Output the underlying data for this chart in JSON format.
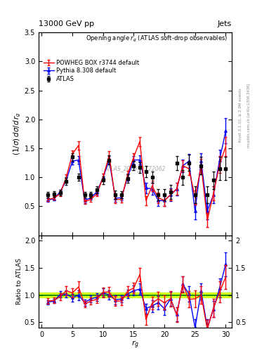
{
  "title_top": "13000 GeV pp",
  "title_right": "Jets",
  "plot_title": "Opening angle r$_g$ (ATLAS soft-drop observables)",
  "ylabel_main": "(1/σ) dσ/d r_g",
  "ylabel_ratio": "Ratio to ATLAS",
  "xlabel": "r_g",
  "watermark": "ATLAS_2019_I1772062",
  "rivet_label": "Rivet 3.1.10, ≥ 2.9M events",
  "arxiv_label": "[arXiv:1306.3436]",
  "mcplots_label": "mcplots.cern.ch",
  "x_data": [
    1,
    2,
    3,
    4,
    5,
    6,
    7,
    8,
    9,
    10,
    11,
    12,
    13,
    14,
    15,
    16,
    17,
    18,
    19,
    20,
    21,
    22,
    23,
    24,
    25,
    26,
    27,
    28,
    29,
    30
  ],
  "atlas_y": [
    0.7,
    0.71,
    0.74,
    0.93,
    1.35,
    1.0,
    0.7,
    0.7,
    0.78,
    0.95,
    1.3,
    0.7,
    0.7,
    0.98,
    1.2,
    1.17,
    1.1,
    1.0,
    0.7,
    0.7,
    0.75,
    1.25,
    1.0,
    1.25,
    0.7,
    1.2,
    0.7,
    0.95,
    1.15,
    1.15
  ],
  "atlas_yerr": [
    0.05,
    0.05,
    0.05,
    0.06,
    0.07,
    0.06,
    0.05,
    0.05,
    0.06,
    0.07,
    0.08,
    0.07,
    0.06,
    0.07,
    0.08,
    0.09,
    0.1,
    0.1,
    0.1,
    0.1,
    0.12,
    0.12,
    0.13,
    0.14,
    0.15,
    0.15,
    0.15,
    0.15,
    0.2,
    0.2
  ],
  "powheg_y": [
    0.62,
    0.64,
    0.72,
    1.0,
    1.4,
    1.55,
    0.58,
    0.62,
    0.72,
    1.0,
    1.38,
    0.62,
    0.62,
    1.05,
    1.35,
    1.62,
    0.6,
    0.85,
    0.65,
    0.6,
    0.7,
    0.8,
    1.2,
    1.15,
    0.65,
    1.2,
    0.26,
    0.72,
    1.22,
    1.53
  ],
  "powheg_yerr": [
    0.03,
    0.03,
    0.04,
    0.05,
    0.06,
    0.07,
    0.04,
    0.04,
    0.05,
    0.06,
    0.07,
    0.06,
    0.05,
    0.06,
    0.07,
    0.08,
    0.08,
    0.09,
    0.09,
    0.09,
    0.1,
    0.1,
    0.1,
    0.11,
    0.12,
    0.12,
    0.12,
    0.12,
    0.15,
    0.16
  ],
  "pythia_y": [
    0.61,
    0.63,
    0.75,
    0.95,
    1.28,
    1.3,
    0.6,
    0.65,
    0.75,
    1.0,
    1.3,
    0.64,
    0.65,
    1.0,
    1.3,
    1.3,
    0.82,
    0.8,
    0.6,
    0.6,
    0.7,
    0.8,
    1.2,
    1.28,
    0.42,
    1.28,
    0.42,
    0.7,
    1.3,
    1.8
  ],
  "pythia_yerr": [
    0.03,
    0.03,
    0.04,
    0.05,
    0.06,
    0.07,
    0.04,
    0.04,
    0.05,
    0.06,
    0.07,
    0.06,
    0.05,
    0.06,
    0.07,
    0.08,
    0.09,
    0.1,
    0.1,
    0.1,
    0.11,
    0.11,
    0.11,
    0.12,
    0.14,
    0.14,
    0.14,
    0.14,
    0.18,
    0.22
  ],
  "ratio_powheg_y": [
    0.89,
    0.9,
    0.97,
    1.08,
    1.04,
    1.15,
    0.83,
    0.89,
    0.92,
    1.05,
    1.06,
    0.89,
    0.89,
    1.07,
    1.13,
    1.38,
    0.55,
    0.85,
    0.93,
    0.86,
    0.93,
    0.64,
    1.2,
    0.92,
    0.93,
    1.0,
    0.37,
    0.76,
    1.06,
    1.33
  ],
  "ratio_powheg_yerr": [
    0.05,
    0.05,
    0.06,
    0.08,
    0.08,
    0.1,
    0.06,
    0.06,
    0.07,
    0.09,
    0.09,
    0.09,
    0.08,
    0.09,
    0.1,
    0.12,
    0.1,
    0.12,
    0.13,
    0.13,
    0.14,
    0.14,
    0.15,
    0.15,
    0.16,
    0.16,
    0.17,
    0.17,
    0.2,
    0.22
  ],
  "ratio_pythia_y": [
    0.87,
    0.89,
    1.01,
    1.02,
    0.95,
    1.0,
    0.86,
    0.93,
    0.96,
    1.05,
    1.0,
    0.91,
    0.93,
    1.02,
    1.08,
    1.11,
    0.75,
    0.8,
    0.86,
    0.75,
    0.93,
    0.64,
    1.2,
    1.02,
    0.4,
    1.07,
    0.4,
    0.74,
    1.13,
    1.57
  ],
  "ratio_pythia_yerr": [
    0.04,
    0.04,
    0.06,
    0.07,
    0.07,
    0.09,
    0.06,
    0.06,
    0.07,
    0.08,
    0.08,
    0.08,
    0.07,
    0.08,
    0.09,
    0.1,
    0.09,
    0.11,
    0.12,
    0.12,
    0.13,
    0.13,
    0.14,
    0.14,
    0.15,
    0.15,
    0.15,
    0.15,
    0.18,
    0.22
  ],
  "ylim_main": [
    0,
    3.5
  ],
  "ylim_ratio": [
    0.4,
    2.1
  ],
  "xlim": [
    -0.5,
    31
  ],
  "yticks_main": [
    0.5,
    1.0,
    1.5,
    2.0,
    2.5,
    3.0,
    3.5
  ],
  "yticks_ratio": [
    0.5,
    1.0,
    1.5,
    2.0
  ],
  "xticks": [
    0,
    5,
    10,
    15,
    20,
    25,
    30
  ],
  "color_atlas": "#000000",
  "color_powheg": "#ff0000",
  "color_pythia": "#0000ff",
  "color_band": "#ccff00",
  "color_greenline": "#008000",
  "bg_color": "#ffffff"
}
